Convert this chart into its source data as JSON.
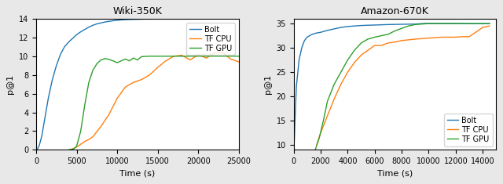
{
  "left_title": "Wiki-350K",
  "right_title": "Amazon-670K",
  "xlabel": "Time (s)",
  "ylabel": "p@1",
  "legend_labels": [
    "Bolt",
    "TF CPU",
    "TF GPU"
  ],
  "colors": [
    "#1f77b4",
    "#ff7f0e",
    "#2ca02c"
  ],
  "fig_facecolor": "#e8e8e8",
  "left": {
    "bolt_x": [
      50,
      100,
      200,
      400,
      700,
      1000,
      1500,
      2000,
      2500,
      3000,
      3500,
      4000,
      4500,
      5000,
      5500,
      6000,
      6500,
      7000,
      7500,
      8000,
      8500,
      9000,
      9500,
      10000,
      10500,
      11000,
      11500,
      12000,
      12500,
      13000,
      13500,
      14000,
      15000,
      17000,
      20000,
      22000,
      25000
    ],
    "bolt_y": [
      0.02,
      0.05,
      0.15,
      0.5,
      1.5,
      3.0,
      5.5,
      7.5,
      9.0,
      10.2,
      11.0,
      11.5,
      11.9,
      12.3,
      12.6,
      12.85,
      13.1,
      13.3,
      13.45,
      13.55,
      13.65,
      13.72,
      13.78,
      13.83,
      13.87,
      13.9,
      13.92,
      13.93,
      13.94,
      13.95,
      13.96,
      13.96,
      13.97,
      13.97,
      13.97,
      13.97,
      13.97
    ],
    "tfcpu_x": [
      4200,
      4500,
      5000,
      5500,
      6000,
      6500,
      7000,
      8000,
      9000,
      10000,
      11000,
      12000,
      13000,
      14000,
      15000,
      16000,
      17000,
      18000,
      19000,
      20000,
      21000,
      22000,
      23000,
      24000,
      25000
    ],
    "tfcpu_y": [
      0.02,
      0.1,
      0.3,
      0.6,
      0.9,
      1.1,
      1.4,
      2.5,
      3.8,
      5.5,
      6.7,
      7.2,
      7.5,
      8.0,
      8.8,
      9.5,
      10.0,
      10.1,
      9.6,
      10.15,
      9.8,
      10.35,
      10.4,
      9.7,
      9.4
    ],
    "tfgpu_x": [
      4100,
      4400,
      4700,
      5000,
      5500,
      6000,
      6500,
      7000,
      7500,
      8000,
      8500,
      9000,
      9500,
      10000,
      10500,
      11000,
      11500,
      12000,
      12500,
      13000,
      14000,
      15000,
      20000,
      25000
    ],
    "tfgpu_y": [
      0.02,
      0.05,
      0.15,
      0.4,
      2.0,
      4.8,
      7.2,
      8.5,
      9.2,
      9.6,
      9.75,
      9.65,
      9.5,
      9.3,
      9.5,
      9.7,
      9.5,
      9.8,
      9.6,
      9.95,
      10.0,
      10.0,
      10.0,
      10.0
    ],
    "xlim": [
      0,
      25000
    ],
    "ylim": [
      0,
      14
    ],
    "xticks": [
      0,
      5000,
      10000,
      15000,
      20000,
      25000
    ],
    "yticks": [
      0,
      2,
      4,
      6,
      8,
      10,
      12,
      14
    ],
    "legend_loc": "upper right"
  },
  "right": {
    "bolt_x": [
      50,
      100,
      200,
      400,
      600,
      800,
      1000,
      1300,
      1600,
      2000,
      2500,
      3000,
      3500,
      4000,
      5000,
      6000,
      7000,
      8000,
      9000,
      9500,
      10000,
      11000,
      12000,
      13000,
      14500
    ],
    "bolt_y": [
      11.0,
      15.0,
      22.0,
      27.5,
      30.0,
      31.5,
      32.2,
      32.7,
      33.0,
      33.2,
      33.6,
      33.9,
      34.2,
      34.4,
      34.6,
      34.7,
      34.8,
      34.85,
      34.9,
      35.0,
      35.05,
      35.05,
      35.05,
      35.0,
      35.0
    ],
    "tfcpu_x": [
      1700,
      2000,
      2500,
      3000,
      3500,
      4000,
      4500,
      5000,
      5500,
      6000,
      6500,
      7000,
      7500,
      8000,
      9000,
      10000,
      11000,
      12000,
      12500,
      13000,
      14000,
      14500
    ],
    "tfcpu_y": [
      10.0,
      12.5,
      16.0,
      19.5,
      22.5,
      25.0,
      27.0,
      28.5,
      29.5,
      30.5,
      30.5,
      31.0,
      31.2,
      31.5,
      31.8,
      32.0,
      32.2,
      32.2,
      32.3,
      32.3,
      34.2,
      34.5
    ],
    "tfgpu_x": [
      1600,
      1900,
      2200,
      2500,
      3000,
      3500,
      4000,
      4500,
      5000,
      5500,
      6000,
      6500,
      7000,
      7500,
      8000,
      8500,
      9000,
      9500,
      10000,
      11000,
      12000,
      14500
    ],
    "tfgpu_y": [
      9.0,
      11.5,
      15.0,
      19.0,
      22.5,
      25.0,
      27.5,
      29.5,
      31.0,
      31.8,
      32.2,
      32.5,
      32.8,
      33.5,
      34.0,
      34.5,
      34.8,
      34.9,
      35.0,
      35.0,
      35.0,
      35.0
    ],
    "xlim": [
      0,
      15000
    ],
    "ylim": [
      9,
      36
    ],
    "xticks": [
      0,
      2000,
      4000,
      6000,
      8000,
      10000,
      12000,
      14000
    ],
    "yticks": [
      10,
      15,
      20,
      25,
      30,
      35
    ],
    "legend_loc": "lower right"
  }
}
